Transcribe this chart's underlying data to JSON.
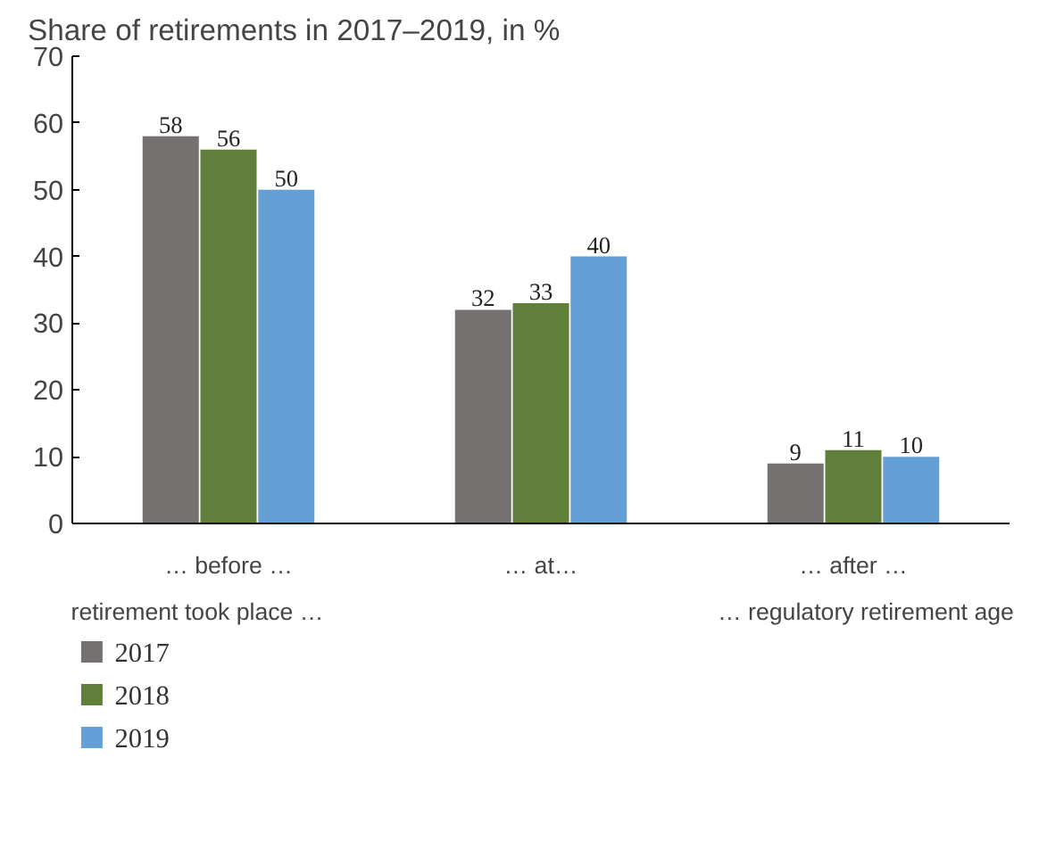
{
  "chart_data": {
    "type": "bar",
    "title": "Share of retirements in 2017–2019, in %",
    "categories": [
      "… before …",
      "… at…",
      "… after …"
    ],
    "series": [
      {
        "name": "2017",
        "color": "#767171",
        "values": [
          58,
          32,
          9
        ]
      },
      {
        "name": "2018",
        "color": "#5f7f3a",
        "values": [
          56,
          33,
          11
        ]
      },
      {
        "name": "2019",
        "color": "#64a0d6",
        "values": [
          50,
          40,
          10
        ]
      }
    ],
    "ylim": [
      0,
      70
    ],
    "yticks": [
      0,
      10,
      20,
      30,
      40,
      50,
      60,
      70
    ],
    "data_labels": true,
    "grid": false,
    "legend": "bottom left",
    "annotations": [
      "retirement took place …",
      "… regulatory retirement age"
    ]
  }
}
